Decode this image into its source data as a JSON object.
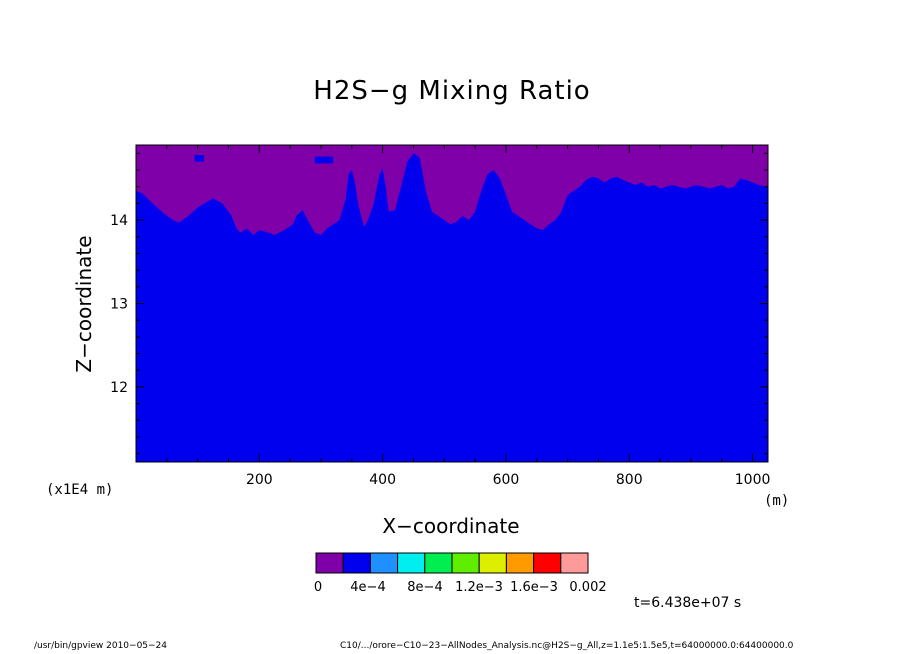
{
  "chart_data": {
    "type": "heatmap",
    "title": "H2S−g Mixing Ratio",
    "xlabel": "X−coordinate",
    "ylabel": "Z−coordinate",
    "x_unit": "(m)",
    "y_unit": "(x1E4 m)",
    "xlim": [
      0,
      1025
    ],
    "ylim": [
      11.1,
      14.9
    ],
    "x_ticks": [
      200,
      400,
      600,
      800,
      1000
    ],
    "y_ticks": [
      12,
      13,
      14
    ],
    "grid": false,
    "colorbar": {
      "colors": [
        "#7f00a8",
        "#0000ee",
        "#1e90ff",
        "#00eeee",
        "#00ee50",
        "#60ee00",
        "#ddee00",
        "#ff9a00",
        "#ff0000",
        "#ff9a9a"
      ],
      "labels": [
        "0",
        "4e−4",
        "8e−4",
        "1.2e−3",
        "1.6e−3",
        "0.002"
      ]
    },
    "regions": [
      {
        "level": "0 – 4e−4",
        "color": "#7f00a8",
        "description": "upper band"
      },
      {
        "level": "4e−4 – 8e−4",
        "color": "#0000ee",
        "description": "main field"
      }
    ],
    "boundary_x": [
      0,
      10,
      20,
      30,
      45,
      60,
      70,
      85,
      100,
      115,
      125,
      140,
      155,
      160,
      165,
      170,
      180,
      190,
      200,
      210,
      215,
      225,
      240,
      255,
      260,
      270,
      280,
      290,
      300,
      310,
      320,
      330,
      340,
      345,
      350,
      355,
      360,
      365,
      370,
      375,
      385,
      395,
      400,
      405,
      410,
      420,
      430,
      440,
      450,
      460,
      470,
      480,
      490,
      500,
      510,
      520,
      530,
      540,
      550,
      560,
      570,
      580,
      590,
      600,
      610,
      620,
      630,
      640,
      650,
      660,
      670,
      680,
      690,
      700,
      710,
      720,
      730,
      740,
      750,
      760,
      770,
      780,
      790,
      800,
      810,
      820,
      830,
      840,
      850,
      860,
      870,
      880,
      890,
      900,
      910,
      920,
      930,
      940,
      950,
      960,
      970,
      980,
      990,
      1000,
      1010,
      1025
    ],
    "boundary_z": [
      14.35,
      14.32,
      14.25,
      14.18,
      14.08,
      14.0,
      13.97,
      14.05,
      14.15,
      14.22,
      14.26,
      14.2,
      14.05,
      13.95,
      13.88,
      13.85,
      13.9,
      13.82,
      13.88,
      13.86,
      13.85,
      13.82,
      13.88,
      13.95,
      14.05,
      14.12,
      13.98,
      13.85,
      13.82,
      13.9,
      13.95,
      14.0,
      14.25,
      14.55,
      14.6,
      14.45,
      14.2,
      14.05,
      13.92,
      13.98,
      14.18,
      14.55,
      14.62,
      14.4,
      14.1,
      14.12,
      14.4,
      14.7,
      14.8,
      14.75,
      14.35,
      14.1,
      14.05,
      14.0,
      13.95,
      13.98,
      14.05,
      14.0,
      14.1,
      14.35,
      14.55,
      14.6,
      14.5,
      14.3,
      14.1,
      14.05,
      14.0,
      13.95,
      13.9,
      13.88,
      13.95,
      14.0,
      14.1,
      14.3,
      14.35,
      14.4,
      14.48,
      14.52,
      14.5,
      14.45,
      14.5,
      14.52,
      14.48,
      14.45,
      14.42,
      14.45,
      14.4,
      14.42,
      14.38,
      14.4,
      14.42,
      14.4,
      14.38,
      14.4,
      14.42,
      14.4,
      14.38,
      14.4,
      14.42,
      14.38,
      14.4,
      14.5,
      14.48,
      14.45,
      14.42,
      14.4
    ],
    "small_patches": [
      {
        "x": [
          95,
          110
        ],
        "z": [
          14.7,
          14.78
        ]
      },
      {
        "x": [
          290,
          320
        ],
        "z": [
          14.68,
          14.76
        ]
      }
    ],
    "annotation": "t=6.438e+07 s"
  },
  "footer": {
    "left": "/usr/bin/gpview  2010−05−24",
    "right": "C10/.../orore−C10−23−AllNodes_Analysis.nc@H2S−g_All,z=1.1e5:1.5e5,t=64000000.0:64400000.0"
  }
}
